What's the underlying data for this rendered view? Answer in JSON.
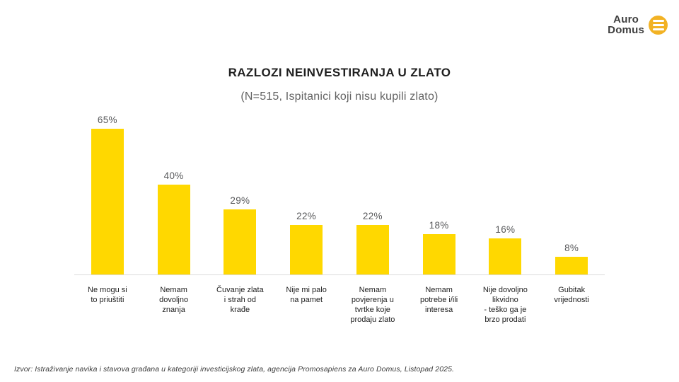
{
  "logo": {
    "line1": "Auro",
    "line2": "Domus",
    "icon": "hamburger-circle-icon",
    "circle_color": "#F2B224"
  },
  "header": {
    "title": "RAZLOZI NEINVESTIRANJA U ZLATO",
    "subtitle": "(N=515, Ispitanici koji nisu kupili zlato)"
  },
  "chart_data": {
    "type": "bar",
    "title": "RAZLOZI NEINVESTIRANJA U ZLATO",
    "subtitle": "(N=515, Ispitanici koji nisu kupili zlato)",
    "categories": [
      "Ne mogu si to priuštiti",
      "Nemam dovoljno znanja",
      "Čuvanje zlata i strah od krađe",
      "Nije mi palo na pamet",
      "Nemam povjerenja u tvrtke koje prodaju zlato",
      "Nemam potrebe i/ili interesa",
      "Nije dovoljno likvidno - teško ga je brzo prodati",
      "Gubitak vrijednosti"
    ],
    "category_labels": [
      "Ne mogu si\nto priuštiti",
      "Nemam\ndovoljno\nznanja",
      "Čuvanje zlata\ni strah od\nkrađe",
      "Nije mi palo\nna pamet",
      "Nemam\npovjerenja u\ntvrtke koje\nprodaju zlato",
      "Nemam\npotrebe i/ili\ninteresa",
      "Nije dovoljno\nlikvidno\n- teško ga je\nbrzo prodati",
      "Gubitak\nvrijednosti"
    ],
    "values": [
      65,
      40,
      29,
      22,
      22,
      18,
      16,
      8
    ],
    "value_labels": [
      "65%",
      "40%",
      "29%",
      "22%",
      "22%",
      "18%",
      "16%",
      "8%"
    ],
    "xlabel": "",
    "ylabel": "",
    "ylim": [
      0,
      65
    ],
    "grid": false,
    "legend": "none",
    "orientation": "vertical",
    "bar_color": "#FFD800"
  },
  "footer": {
    "source": "Izvor: Istraživanje navika i stavova građana u kategoriji investicijskog zlata, agencija Promosapiens za Auro Domus, Listopad 2025."
  }
}
